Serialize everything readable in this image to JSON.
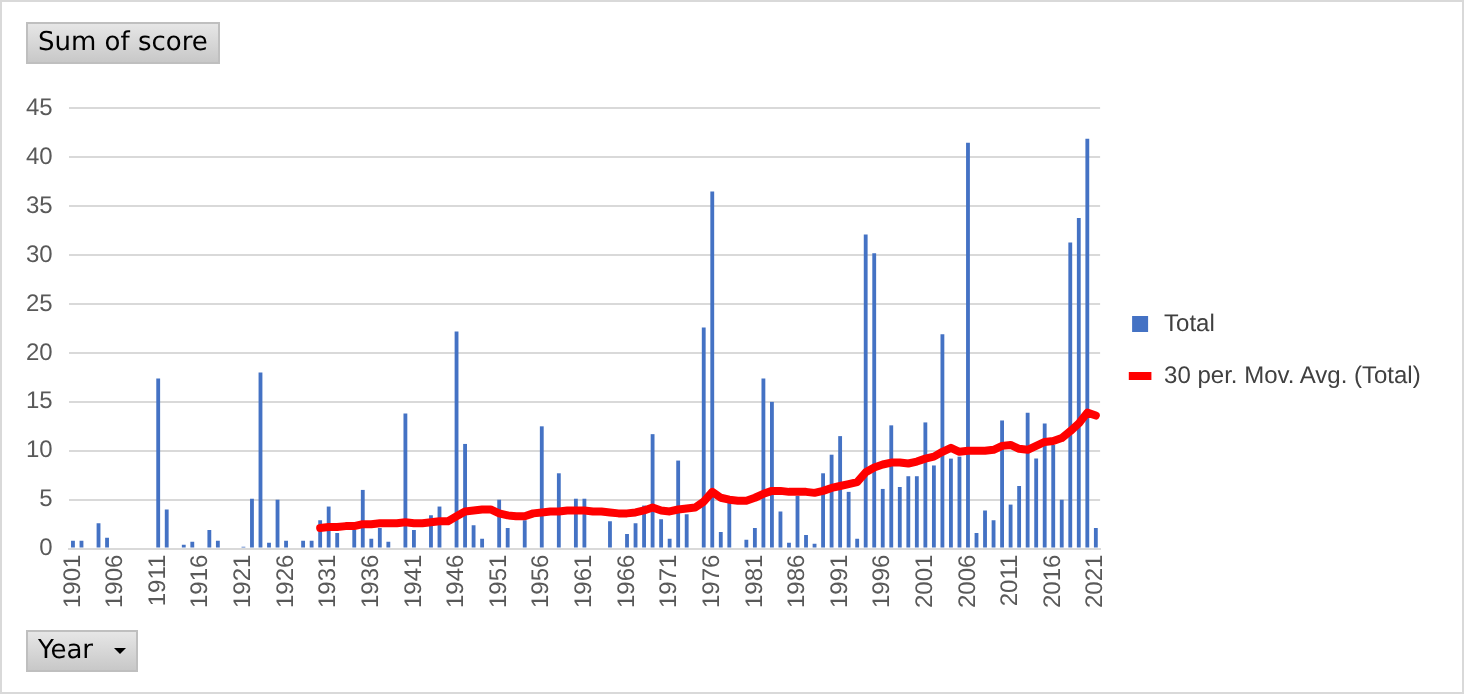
{
  "chart_data": {
    "type": "bar",
    "title": "Sum of score",
    "xlabel": "Year",
    "categories": [
      "1901",
      null,
      null,
      null,
      null,
      "1906",
      null,
      null,
      null,
      null,
      "1911",
      null,
      null,
      null,
      null,
      "1916",
      null,
      null,
      null,
      null,
      "1921",
      null,
      null,
      null,
      null,
      "1926",
      null,
      null,
      null,
      null,
      "1931",
      null,
      null,
      null,
      null,
      "1936",
      null,
      null,
      null,
      null,
      "1941",
      null,
      null,
      null,
      null,
      "1946",
      null,
      null,
      null,
      null,
      "1951",
      null,
      null,
      null,
      null,
      "1956",
      null,
      null,
      null,
      null,
      "1961",
      null,
      null,
      null,
      null,
      "1966",
      null,
      null,
      null,
      null,
      "1971",
      null,
      null,
      null,
      null,
      "1976",
      null,
      null,
      null,
      null,
      "1981",
      null,
      null,
      null,
      null,
      "1986",
      null,
      null,
      null,
      null,
      "1991",
      null,
      null,
      null,
      null,
      "1996",
      null,
      null,
      null,
      null,
      "2001",
      null,
      null,
      null,
      null,
      "2006",
      null,
      null,
      null,
      null,
      "2011",
      null,
      null,
      null,
      null,
      "2016",
      null,
      null,
      null,
      null,
      "2021"
    ],
    "series": [
      {
        "name": "Total",
        "type": "bar",
        "color": "#4472c4",
        "values": [
          0.8,
          0.8,
          0,
          2.6,
          1.1,
          0,
          0,
          0,
          0,
          0,
          17.4,
          4.0,
          0,
          0.4,
          0.7,
          0,
          1.9,
          0.8,
          0,
          0,
          0.2,
          5.1,
          18.0,
          0.6,
          5.0,
          0.8,
          0,
          0.8,
          0.8,
          2.9,
          4.3,
          1.6,
          0,
          1.9,
          6.0,
          1.0,
          2.1,
          0.7,
          0,
          13.8,
          1.9,
          0,
          3.4,
          4.3,
          0,
          22.2,
          10.7,
          2.4,
          1.0,
          0,
          5.0,
          2.1,
          0,
          2.9,
          0,
          12.5,
          0,
          7.7,
          0,
          5.1,
          5.1,
          0,
          0,
          2.8,
          0,
          1.5,
          2.6,
          4.4,
          11.7,
          3.0,
          1.0,
          9.0,
          3.5,
          0,
          22.6,
          36.5,
          1.7,
          4.9,
          0,
          0.9,
          2.1,
          17.4,
          15.0,
          3.8,
          0.6,
          5.4,
          1.4,
          0.5,
          7.7,
          9.6,
          11.5,
          5.8,
          1.0,
          32.1,
          30.2,
          6.1,
          12.6,
          6.3,
          7.4,
          7.4,
          12.9,
          8.5,
          21.9,
          9.2,
          9.4,
          41.5,
          1.6,
          3.9,
          2.9,
          13.1,
          4.5,
          6.4,
          13.9,
          9.2,
          12.8,
          10.6,
          5.0,
          31.3,
          33.8,
          41.9,
          2.1
        ]
      },
      {
        "name": "30 per. Mov. Avg. (Total)",
        "type": "line",
        "color": "#ff0000",
        "values": [
          null,
          null,
          null,
          null,
          null,
          null,
          null,
          null,
          null,
          null,
          null,
          null,
          null,
          null,
          null,
          null,
          null,
          null,
          null,
          null,
          null,
          null,
          null,
          null,
          null,
          null,
          null,
          null,
          null,
          2.1,
          2.2,
          2.2,
          2.3,
          2.3,
          2.5,
          2.5,
          2.6,
          2.6,
          2.6,
          2.7,
          2.6,
          2.6,
          2.7,
          2.8,
          2.8,
          3.3,
          3.8,
          3.9,
          4.0,
          4.0,
          3.6,
          3.4,
          3.3,
          3.3,
          3.6,
          3.7,
          3.8,
          3.8,
          3.9,
          3.9,
          3.9,
          3.8,
          3.8,
          3.7,
          3.6,
          3.6,
          3.7,
          3.9,
          4.2,
          3.9,
          3.8,
          4.0,
          4.1,
          4.2,
          4.8,
          5.8,
          5.2,
          5.0,
          4.9,
          4.9,
          5.2,
          5.6,
          5.9,
          5.9,
          5.8,
          5.8,
          5.8,
          5.7,
          5.9,
          6.2,
          6.4,
          6.6,
          6.8,
          7.8,
          8.3,
          8.6,
          8.8,
          8.8,
          8.7,
          8.9,
          9.2,
          9.4,
          9.9,
          10.3,
          9.9,
          10.0,
          10.0,
          10.0,
          10.1,
          10.5,
          10.6,
          10.2,
          10.1,
          10.5,
          10.9,
          11.0,
          11.3,
          12.0,
          12.8,
          13.9,
          13.6
        ]
      }
    ],
    "ylim": [
      0,
      45
    ],
    "yticks": [
      0,
      5,
      10,
      15,
      20,
      25,
      30,
      35,
      40,
      45
    ],
    "grid": "y",
    "legend": "right"
  }
}
